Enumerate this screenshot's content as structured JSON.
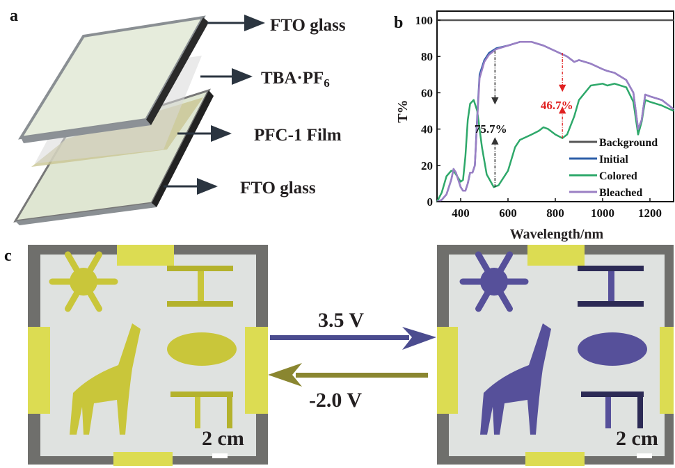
{
  "panels": {
    "a": "a",
    "b": "b",
    "c": "c"
  },
  "panel_a": {
    "layers": [
      "FTO glass",
      "TBA·PF",
      "PFC-1 Film",
      "FTO glass"
    ],
    "tba_subscript": "6"
  },
  "chart_data": {
    "type": "line",
    "xlabel": "Wavelength/nm",
    "ylabel": "T%",
    "xlim": [
      300,
      1300
    ],
    "ylim": [
      0,
      100
    ],
    "xticks": [
      400,
      600,
      800,
      1000,
      1200
    ],
    "yticks": [
      0,
      20,
      40,
      60,
      80,
      100
    ],
    "grid": false,
    "legend_position": "bottom-right",
    "series": [
      {
        "name": "Background",
        "color": "#555555",
        "x": [
          300,
          1300
        ],
        "y": [
          100,
          100
        ]
      },
      {
        "name": "Initial",
        "color": "#2e5fa8",
        "x": [
          300,
          320,
          340,
          360,
          370,
          380,
          400,
          410,
          420,
          430,
          440,
          450,
          460,
          470,
          480,
          500,
          520,
          550,
          600,
          650,
          700,
          750,
          800,
          850,
          880,
          900,
          950,
          1000,
          1020,
          1050,
          1100,
          1130,
          1150,
          1165,
          1180,
          1200,
          1250,
          1300
        ],
        "y": [
          0,
          1,
          4,
          12,
          18,
          16,
          8,
          6,
          6,
          10,
          16,
          16,
          20,
          47,
          70,
          78,
          82,
          84.5,
          86,
          88,
          88,
          86,
          83,
          80,
          77,
          78,
          76,
          73,
          72,
          71,
          67,
          60,
          40,
          45,
          59,
          58,
          56,
          51
        ]
      },
      {
        "name": "Colored",
        "color": "#2ea86a",
        "x": [
          300,
          320,
          340,
          360,
          370,
          380,
          400,
          410,
          420,
          430,
          440,
          455,
          470,
          490,
          510,
          540,
          560,
          600,
          630,
          650,
          700,
          730,
          750,
          770,
          800,
          830,
          850,
          880,
          900,
          950,
          1000,
          1020,
          1050,
          1100,
          1130,
          1150,
          1165,
          1180,
          1200,
          1250,
          1300
        ],
        "y": [
          0,
          5,
          14,
          17,
          17,
          15,
          11,
          12,
          25,
          45,
          54,
          56,
          50,
          30,
          15,
          8,
          9,
          17,
          30,
          34,
          37,
          39,
          41,
          40,
          37,
          35,
          37,
          47,
          56,
          64,
          65,
          64,
          65,
          63,
          55,
          37,
          44,
          56,
          55,
          53,
          50
        ]
      },
      {
        "name": "Bleached",
        "color": "#9b7fc4",
        "x": [
          300,
          320,
          340,
          360,
          370,
          380,
          400,
          410,
          420,
          430,
          440,
          450,
          460,
          470,
          480,
          500,
          520,
          550,
          600,
          650,
          700,
          750,
          800,
          850,
          880,
          900,
          950,
          1000,
          1020,
          1050,
          1100,
          1130,
          1150,
          1165,
          1180,
          1200,
          1250,
          1300
        ],
        "y": [
          0,
          1,
          4,
          12,
          18,
          16,
          8,
          6,
          6,
          10,
          16,
          16,
          20,
          45,
          68,
          77,
          81,
          84,
          86,
          88,
          88,
          86,
          83,
          80,
          77,
          78,
          76,
          73,
          72,
          71,
          67,
          60,
          40,
          45,
          59,
          58,
          56,
          51
        ]
      }
    ],
    "annotations": [
      {
        "text": "75.7%",
        "x": 545,
        "from": 83,
        "to": 8,
        "color": "#111111"
      },
      {
        "text": "46.7%",
        "x": 830,
        "from": 82,
        "to": 35,
        "color": "#e02020"
      }
    ]
  },
  "panel_c": {
    "forward_voltage": "3.5 V",
    "reverse_voltage": "-2.0 V",
    "scale_left": "2 cm",
    "scale_right": "2 cm",
    "forward_color": "#4b4c8f",
    "reverse_color": "#8a8630",
    "bleached_pattern_color": "#c9c63a",
    "colored_pattern_color": "#56509a"
  }
}
